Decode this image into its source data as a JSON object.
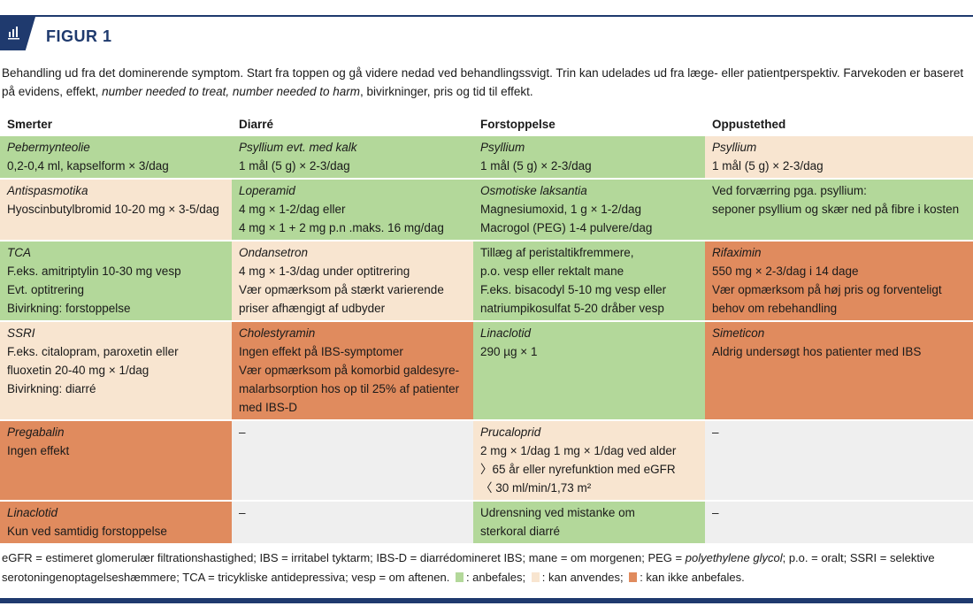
{
  "figure": {
    "title": "FIGUR 1",
    "icon": "bar-chart-icon"
  },
  "intro": {
    "text1": "Behandling ud fra det dominerende symptom. Start fra toppen og gå videre nedad ved behandlingssvigt. Trin kan udelades ud fra læge- eller patientperspektiv. Farvekoden er baseret på evidens, effekt, ",
    "italic": "number needed to treat, number needed to harm",
    "text2": ", bivirkninger, pris og tid til effekt."
  },
  "colors": {
    "G": "#b3d89a",
    "B": "#f8e5d0",
    "O": "#e08b5e",
    "X": "#efefef"
  },
  "table": {
    "headers": [
      "Smerter",
      "Diarré",
      "Forstoppelse",
      "Oppustethed"
    ],
    "rows": [
      [
        {
          "c": "G",
          "title": "Pebermynteolie",
          "lines": [
            "0,2-0,4 ml, kapselform × 3/dag"
          ]
        },
        {
          "c": "G",
          "title": "Psyllium evt. med kalk",
          "lines": [
            "1 mål (5 g) × 2-3/dag"
          ]
        },
        {
          "c": "G",
          "title": "Psyllium",
          "lines": [
            "1 mål (5 g) × 2-3/dag"
          ]
        },
        {
          "c": "B",
          "title": "Psyllium",
          "lines": [
            "1 mål (5 g) × 2-3/dag"
          ]
        }
      ],
      [
        {
          "c": "B",
          "title": "Antispasmotika",
          "lines": [
            "Hyoscinbutylbromid 10-20 mg × 3-5/dag"
          ]
        },
        {
          "c": "G",
          "title": "Loperamid",
          "lines": [
            "4 mg × 1-2/dag eller",
            "4 mg × 1 + 2 mg p.n .maks. 16 mg/dag"
          ]
        },
        {
          "c": "G",
          "title": "Osmotiske laksantia",
          "lines": [
            "Magnesiumoxid, 1 g × 1-2/dag",
            "Macrogol (PEG) 1-4 pulvere/dag"
          ]
        },
        {
          "c": "G",
          "title": "",
          "lines": [
            "Ved forværring pga. psyllium:",
            "seponer psyllium og skær ned på fibre i kosten"
          ]
        }
      ],
      [
        {
          "c": "G",
          "title": "TCA",
          "lines": [
            "F.eks. amitriptylin 10-30 mg vesp",
            "Evt. optitrering",
            "Bivirkning: forstoppelse"
          ]
        },
        {
          "c": "B",
          "title": "Ondansetron",
          "lines": [
            "4 mg × 1-3/dag under optitrering",
            "Vær opmærksom på stærkt varierende",
            "priser afhængigt af udbyder"
          ]
        },
        {
          "c": "G",
          "title": "",
          "lines": [
            "Tillæg af peristaltikfremmere,",
            "p.o. vesp eller rektalt mane",
            "F.eks. bisacodyl 5-10 mg vesp eller",
            "natriumpikosulfat 5-20 dråber vesp"
          ]
        },
        {
          "c": "O",
          "title": "Rifaximin",
          "lines": [
            "550 mg × 2-3/dag i 14 dage",
            "Vær opmærksom på høj pris og forventeligt",
            "behov om rebehandling"
          ]
        }
      ],
      [
        {
          "c": "B",
          "title": "SSRI",
          "lines": [
            "F.eks. citalopram, paroxetin eller",
            "fluoxetin 20-40 mg × 1/dag",
            "Bivirkning: diarré"
          ]
        },
        {
          "c": "O",
          "title": "Cholestyramin",
          "lines": [
            "Ingen effekt på IBS-symptomer",
            "Vær opmærksom på komorbid galdesyre-",
            "malarbsorption hos op til 25% af patienter",
            "med IBS-D"
          ]
        },
        {
          "c": "G",
          "title": "Linaclotid",
          "lines": [
            "290 µg × 1"
          ]
        },
        {
          "c": "O",
          "title": "Simeticon",
          "lines": [
            "Aldrig undersøgt hos patienter med IBS"
          ]
        }
      ],
      [
        {
          "c": "O",
          "title": "Pregabalin",
          "lines": [
            "Ingen effekt"
          ]
        },
        {
          "c": "X",
          "title": "",
          "lines": [
            "–"
          ]
        },
        {
          "c": "B",
          "title": "Prucaloprid",
          "lines": [
            "2 mg × 1/dag 1 mg × 1/dag ved alder",
            "〉65 år eller nyrefunktion med eGFR",
            "〈 30 ml/min/1,73 m²"
          ]
        },
        {
          "c": "X",
          "title": "",
          "lines": [
            "–"
          ]
        }
      ],
      [
        {
          "c": "O",
          "title": "Linaclotid",
          "lines": [
            "Kun ved samtidig forstoppelse"
          ]
        },
        {
          "c": "X",
          "title": "",
          "lines": [
            "–"
          ]
        },
        {
          "c": "G",
          "title": "",
          "lines": [
            "Udrensning ved mistanke om",
            "sterkoral diarré"
          ]
        },
        {
          "c": "X",
          "title": "",
          "lines": [
            "–"
          ]
        }
      ]
    ]
  },
  "footnote": {
    "a": "eGFR = estimeret glomerulær filtrationshastighed;  IBS = irritabel tyktarm;  IBS-D = diarrédomineret IBS;  mane = om morgenen;  PEG = ",
    "italic": "polyethylene glycol",
    "b": ";  p.o. = oralt;  SSRI = selektive serotoningenoptagelseshæmmere;  TCA = tricykliske antidepressiva;  vesp = om aftenen.",
    "legend": [
      {
        "c": "G",
        "label": ": anbefales;"
      },
      {
        "c": "B",
        "label": ": kan anvendes;"
      },
      {
        "c": "O",
        "label": ": kan ikke anbefales."
      }
    ]
  }
}
